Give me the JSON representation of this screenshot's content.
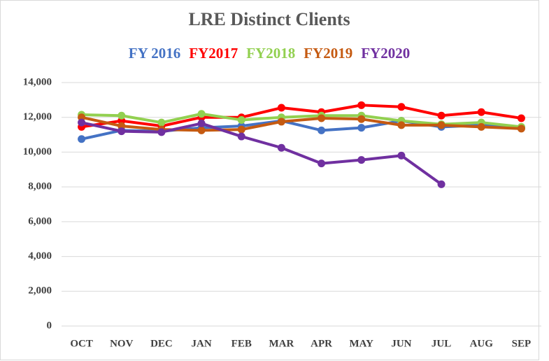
{
  "chart_data": {
    "type": "line",
    "title": "LRE Distinct Clients",
    "categories": [
      "OCT",
      "NOV",
      "DEC",
      "JAN",
      "FEB",
      "MAR",
      "APR",
      "MAY",
      "JUN",
      "JUL",
      "AUG",
      "SEP"
    ],
    "series": [
      {
        "name": "FY 2016",
        "color": "#4472c4",
        "values": [
          10750,
          11250,
          11200,
          11400,
          11500,
          11800,
          11250,
          11400,
          11800,
          11450,
          11550,
          11400
        ]
      },
      {
        "name": "FY2017",
        "color": "#ff0000",
        "values": [
          11450,
          11800,
          11500,
          12000,
          12000,
          12550,
          12300,
          12700,
          12600,
          12100,
          12300,
          11950
        ]
      },
      {
        "name": "FY2018",
        "color": "#92d050",
        "values": [
          12150,
          12100,
          11700,
          12200,
          11850,
          12000,
          12100,
          12100,
          11800,
          11600,
          11700,
          11450
        ]
      },
      {
        "name": "FY2019",
        "color": "#c55a11",
        "values": [
          12000,
          11500,
          11300,
          11250,
          11300,
          11750,
          11950,
          11900,
          11550,
          11550,
          11450,
          11350
        ]
      },
      {
        "name": "FY2020",
        "color": "#7030a0",
        "values": [
          11700,
          11200,
          11150,
          11650,
          10900,
          10250,
          9350,
          9550,
          9800,
          8150,
          null,
          null
        ]
      }
    ],
    "ylim": [
      0,
      14000
    ],
    "yticks": [
      0,
      {
        "value": 2000,
        "label": "2,000"
      },
      {
        "value": 4000,
        "label": "4,000"
      },
      {
        "value": 6000,
        "label": "6,000"
      },
      {
        "value": 8000,
        "label": "8,000"
      },
      {
        "value": 10000,
        "label": "10,000"
      },
      {
        "value": 12000,
        "label": "12,000"
      },
      {
        "value": 14000,
        "label": "14,000"
      }
    ],
    "grid": true
  }
}
